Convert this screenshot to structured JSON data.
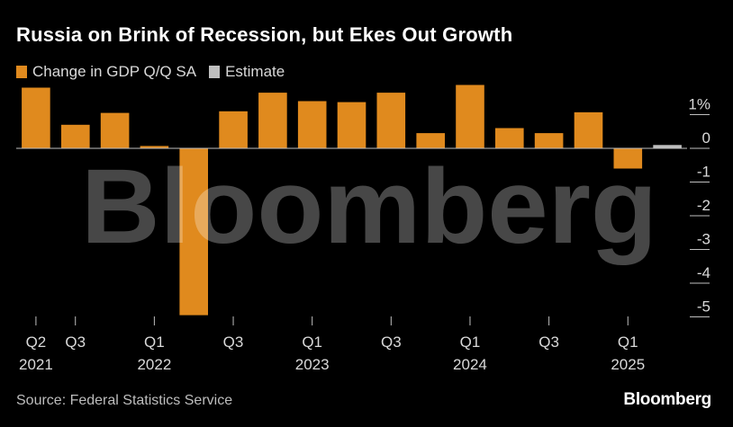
{
  "header": {
    "title": "Russia on Brink of Recession, but Ekes Out Growth"
  },
  "legend": {
    "items": [
      {
        "label": "Change in GDP Q/Q SA",
        "color": "#e08a1e"
      },
      {
        "label": "Estimate",
        "color": "#bfbfbf"
      }
    ]
  },
  "footer": {
    "source": "Source: Federal Statistics Service",
    "brand": "Bloomberg"
  },
  "watermark": {
    "text": "Bloomberg"
  },
  "chart_data": {
    "type": "bar",
    "title": "Russia on Brink of Recession, but Ekes Out Growth",
    "xlabel": "",
    "ylabel": "",
    "ylim": [
      -5.3,
      1.9
    ],
    "y_ticks": [
      {
        "value": 1,
        "label": "1%"
      },
      {
        "value": 0,
        "label": "0"
      },
      {
        "value": -1,
        "label": "-1"
      },
      {
        "value": -2,
        "label": "-2"
      },
      {
        "value": -3,
        "label": "-3"
      },
      {
        "value": -4,
        "label": "-4"
      },
      {
        "value": -5,
        "label": "-5"
      }
    ],
    "categories": [
      "Q2 2021",
      "Q3 2021",
      "Q4 2021",
      "Q1 2022",
      "Q2 2022",
      "Q3 2022",
      "Q4 2022",
      "Q1 2023",
      "Q2 2023",
      "Q3 2023",
      "Q4 2023",
      "Q1 2024",
      "Q2 2024",
      "Q3 2024",
      "Q4 2024",
      "Q1 2025",
      "Q2 2025"
    ],
    "series": [
      {
        "name": "Change in GDP Q/Q SA",
        "color": "#e08a1e",
        "values": [
          1.8,
          0.7,
          1.05,
          0.07,
          -4.95,
          1.1,
          1.65,
          1.4,
          1.37,
          1.65,
          0.45,
          1.88,
          0.6,
          0.45,
          1.07,
          -0.6,
          null
        ]
      },
      {
        "name": "Estimate",
        "color": "#bfbfbf",
        "values": [
          null,
          null,
          null,
          null,
          null,
          null,
          null,
          null,
          null,
          null,
          null,
          null,
          null,
          null,
          null,
          null,
          0.1
        ]
      }
    ],
    "x_tick_labels": [
      {
        "index": 0,
        "quarter": "Q2",
        "year": "2021"
      },
      {
        "index": 1,
        "quarter": "Q3",
        "year": ""
      },
      {
        "index": 3,
        "quarter": "Q1",
        "year": "2022"
      },
      {
        "index": 5,
        "quarter": "Q3",
        "year": ""
      },
      {
        "index": 7,
        "quarter": "Q1",
        "year": "2023"
      },
      {
        "index": 9,
        "quarter": "Q3",
        "year": ""
      },
      {
        "index": 11,
        "quarter": "Q1",
        "year": "2024"
      },
      {
        "index": 13,
        "quarter": "Q3",
        "year": ""
      },
      {
        "index": 15,
        "quarter": "Q1",
        "year": "2025"
      }
    ],
    "colors": {
      "positive": "#e08a1e",
      "estimate": "#bfbfbf",
      "axis": "#bfbfbf",
      "tick": "#bfbfbf"
    }
  }
}
